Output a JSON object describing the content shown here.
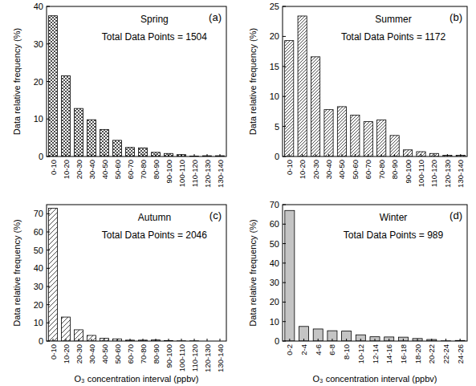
{
  "chart_data": [
    {
      "type": "bar",
      "title": "Spring",
      "subtitle": "Total Data Points = 1504",
      "annotations": [
        "(a)"
      ],
      "y_label": "Data relative frequency (%)",
      "categories": [
        "0-10",
        "10-20",
        "20-30",
        "30-40",
        "40-50",
        "50-60",
        "60-70",
        "70-80",
        "80-90",
        "90-100",
        "100-110",
        "110-120",
        "120-130",
        "130-140"
      ],
      "values": [
        37.5,
        21.5,
        12.8,
        9.8,
        7.2,
        4.3,
        2.4,
        2.3,
        1.1,
        0.8,
        0.5,
        0.1,
        0.2,
        0.2
      ],
      "color": "#222222",
      "ylim": [
        0,
        40
      ],
      "yticks": [
        0,
        10,
        20,
        30,
        40
      ]
    },
    {
      "type": "bar",
      "title": "Summer",
      "subtitle": "Total Data Points = 1172",
      "annotations": [
        "(b)"
      ],
      "y_label": "Data relative frequency (%)",
      "categories": [
        "0-10",
        "10-20",
        "20-30",
        "30-40",
        "40-50",
        "50-60",
        "60-70",
        "70-80",
        "80-90",
        "90-100",
        "100-110",
        "110-120",
        "120-130",
        "130-140"
      ],
      "values": [
        19.3,
        23.4,
        16.6,
        7.8,
        8.3,
        6.9,
        5.8,
        6.1,
        3.5,
        1.1,
        0.8,
        0.5,
        0.2,
        0.2
      ],
      "color": "#222222",
      "ylim": [
        0,
        25
      ],
      "yticks": [
        0,
        5,
        10,
        15,
        20,
        25
      ]
    },
    {
      "type": "bar",
      "title": "Autumn",
      "subtitle": "Total Data Points = 2046",
      "annotations": [
        "(c)"
      ],
      "y_label": "Data relative frequency (%)",
      "x_label": "O₃ concentration interval (ppbv)",
      "categories": [
        "0-10",
        "10-20",
        "20-30",
        "30-40",
        "40-50",
        "50-60",
        "60-70",
        "70-80",
        "80-90",
        "90-100",
        "100-110",
        "110-120",
        "120-130",
        "130-140"
      ],
      "values": [
        73,
        13.2,
        6.2,
        3.1,
        1.5,
        1.2,
        0.5,
        0.5,
        0.6,
        0.3,
        0.1,
        0.1,
        0,
        0
      ],
      "color": "#222222",
      "ylim": [
        0,
        75
      ],
      "yticks": [
        0,
        10,
        20,
        30,
        40,
        50,
        60,
        70
      ]
    },
    {
      "type": "bar",
      "title": "Winter",
      "subtitle": "Total Data Points = 989",
      "annotations": [
        "(d)"
      ],
      "y_label": "Data relative frequency (%)",
      "x_label": "O₃ concentration interval (ppbv)",
      "categories": [
        "0-2",
        "2-4",
        "4-6",
        "6-8",
        "8-10",
        "10-12",
        "12-14",
        "14-16",
        "16-18",
        "18-20",
        "20-22",
        "22-24",
        "24-26"
      ],
      "values": [
        67,
        7.5,
        6.2,
        5.3,
        5.1,
        3.2,
        2.2,
        2.1,
        2.0,
        1.3,
        0.8,
        0.1,
        0.3
      ],
      "color": "#c4c4c4",
      "ylim": [
        0,
        70
      ],
      "yticks": [
        0,
        10,
        20,
        30,
        40,
        50,
        60,
        70
      ]
    }
  ]
}
